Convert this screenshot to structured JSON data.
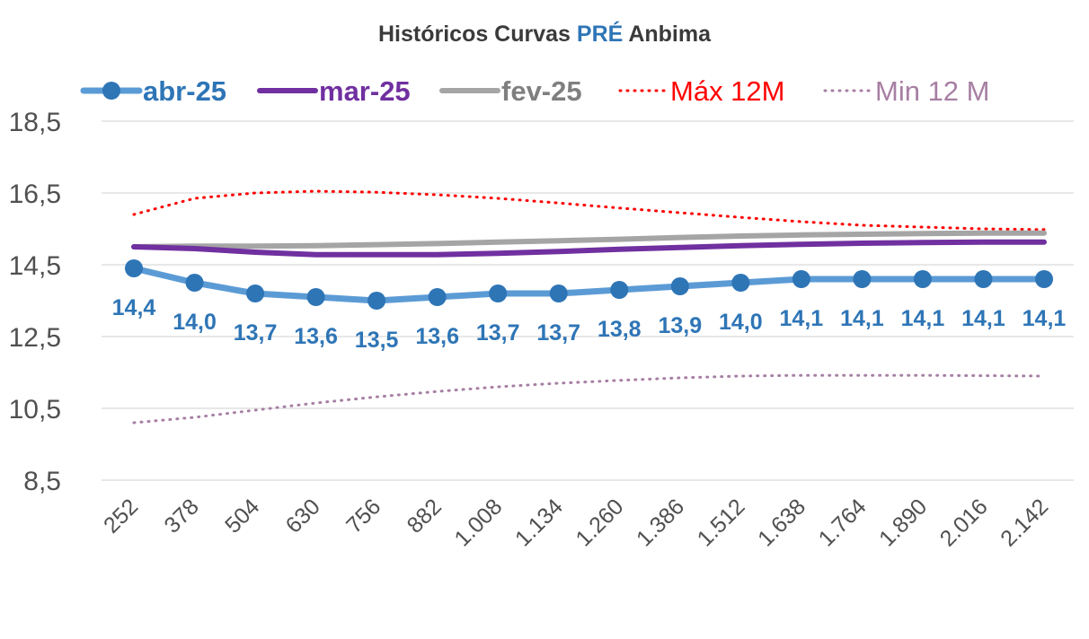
{
  "chart_data": {
    "type": "line",
    "title": {
      "prefix": "Históricos Curvas ",
      "highlight": "PRÉ",
      "suffix": " Anbima"
    },
    "xlabel": "",
    "ylabel": "",
    "categories": [
      "252",
      "378",
      "504",
      "630",
      "756",
      "882",
      "1.008",
      "1.134",
      "1.260",
      "1.386",
      "1.512",
      "1.638",
      "1.764",
      "1.890",
      "2.016",
      "2.142"
    ],
    "y_ticks": [
      "8,5",
      "10,5",
      "12,5",
      "14,5",
      "16,5",
      "18,5"
    ],
    "ylim": [
      8.5,
      18.5
    ],
    "grid": true,
    "legend_position": "top",
    "series": [
      {
        "name": "abr-25",
        "color": "#5b9bd5",
        "marker_color": "#2e75b6",
        "style": "solid-markers",
        "values": [
          14.4,
          14.0,
          13.7,
          13.6,
          13.5,
          13.6,
          13.7,
          13.7,
          13.8,
          13.9,
          14.0,
          14.1,
          14.1,
          14.1,
          14.1,
          14.1
        ],
        "labels": [
          "14,4",
          "14,0",
          "13,7",
          "13,6",
          "13,5",
          "13,6",
          "13,7",
          "13,7",
          "13,8",
          "13,9",
          "14,0",
          "14,1",
          "14,1",
          "14,1",
          "14,1",
          "14,1"
        ],
        "label_color": "#2e75b6"
      },
      {
        "name": "mar-25",
        "color": "#7030a0",
        "style": "solid",
        "values": [
          15.0,
          14.95,
          14.85,
          14.78,
          14.78,
          14.78,
          14.82,
          14.87,
          14.93,
          14.98,
          15.03,
          15.07,
          15.1,
          15.12,
          15.13,
          15.13
        ]
      },
      {
        "name": "fev-25",
        "color": "#a5a5a5",
        "style": "solid",
        "values": [
          15.0,
          15.02,
          15.02,
          15.03,
          15.06,
          15.09,
          15.13,
          15.17,
          15.21,
          15.26,
          15.3,
          15.33,
          15.35,
          15.37,
          15.38,
          15.38
        ]
      },
      {
        "name": "Máx 12M",
        "color": "#ff0000",
        "style": "dotted",
        "values": [
          15.9,
          16.35,
          16.5,
          16.55,
          16.52,
          16.45,
          16.35,
          16.22,
          16.08,
          15.95,
          15.82,
          15.7,
          15.6,
          15.55,
          15.5,
          15.48
        ]
      },
      {
        "name": "Min 12 M",
        "color": "#a77fa3",
        "style": "dotted",
        "values": [
          10.1,
          10.25,
          10.45,
          10.65,
          10.82,
          10.97,
          11.1,
          11.2,
          11.28,
          11.35,
          11.4,
          11.42,
          11.42,
          11.42,
          11.41,
          11.4
        ]
      }
    ]
  }
}
